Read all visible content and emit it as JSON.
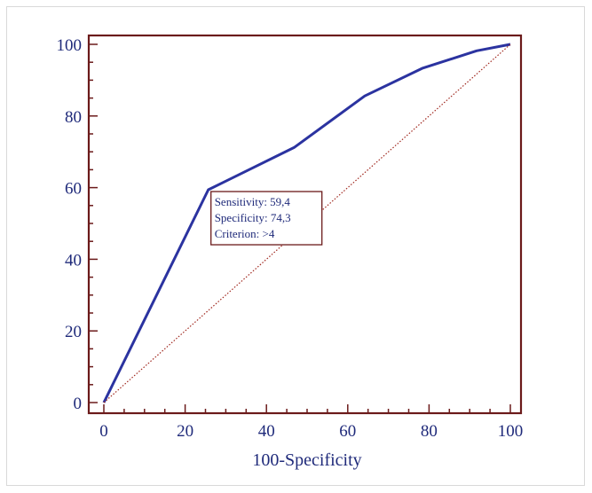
{
  "chart_data": {
    "type": "line",
    "title": "",
    "xlabel": "100-Specificity",
    "ylabel": "",
    "xlim": [
      0,
      100
    ],
    "ylim": [
      0,
      100
    ],
    "xticks": [
      "0",
      "20",
      "40",
      "60",
      "80",
      "100"
    ],
    "yticks": [
      "0",
      "20",
      "40",
      "60",
      "80",
      "100"
    ],
    "grid": false,
    "series": [
      {
        "x": [
          0,
          25.7,
          46.8,
          64.2,
          78.3,
          91.7,
          100
        ],
        "y": [
          0,
          59.4,
          71.2,
          85.6,
          93.3,
          98.2,
          100
        ],
        "color": "#2b33a0",
        "style": "solid"
      },
      {
        "x": [
          0,
          100
        ],
        "y": [
          0,
          100
        ],
        "color": "#a0281f",
        "style": "dotted"
      }
    ],
    "annotation": {
      "lines": [
        "Sensitivity: 59,4",
        "Specificity: 74,3",
        "Criterion: >4"
      ],
      "x": 25.7,
      "y": 59.4
    },
    "colors": {
      "axis": "#6b1a1a",
      "text": "#1f2a7a"
    }
  }
}
